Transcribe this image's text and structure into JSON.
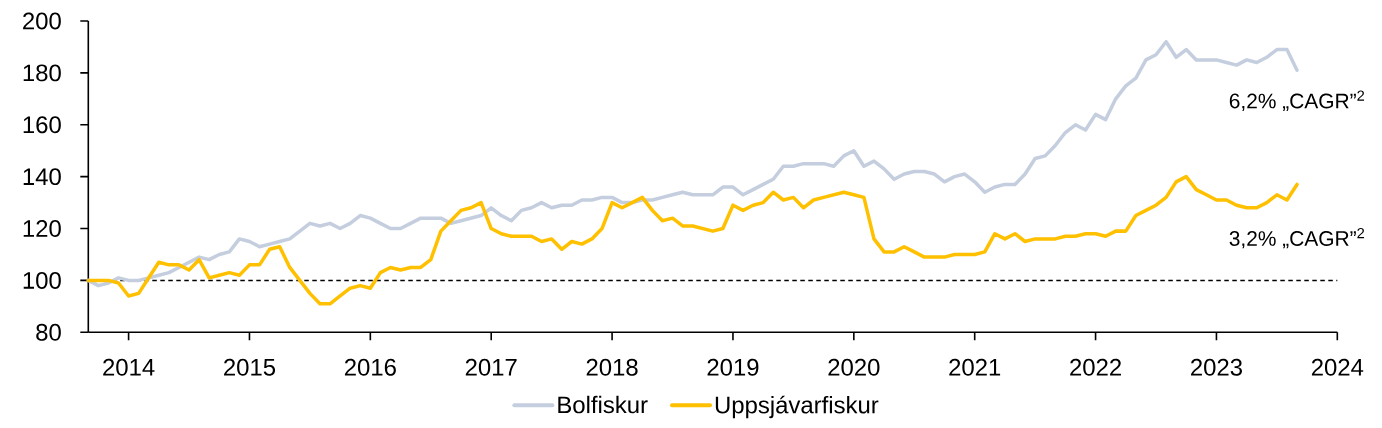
{
  "chart_data": {
    "type": "line",
    "x": [
      "2013-09",
      "2013-10",
      "2013-11",
      "2013-12",
      "2014-01",
      "2014-02",
      "2014-03",
      "2014-04",
      "2014-05",
      "2014-06",
      "2014-07",
      "2014-08",
      "2014-09",
      "2014-10",
      "2014-11",
      "2014-12",
      "2015-01",
      "2015-02",
      "2015-03",
      "2015-04",
      "2015-05",
      "2015-06",
      "2015-07",
      "2015-08",
      "2015-09",
      "2015-10",
      "2015-11",
      "2015-12",
      "2016-01",
      "2016-02",
      "2016-03",
      "2016-04",
      "2016-05",
      "2016-06",
      "2016-07",
      "2016-08",
      "2016-09",
      "2016-10",
      "2016-11",
      "2016-12",
      "2017-01",
      "2017-02",
      "2017-03",
      "2017-04",
      "2017-05",
      "2017-06",
      "2017-07",
      "2017-08",
      "2017-09",
      "2017-10",
      "2017-11",
      "2017-12",
      "2018-01",
      "2018-02",
      "2018-03",
      "2018-04",
      "2018-05",
      "2018-06",
      "2018-07",
      "2018-08",
      "2018-09",
      "2018-10",
      "2018-11",
      "2018-12",
      "2019-01",
      "2019-02",
      "2019-03",
      "2019-04",
      "2019-05",
      "2019-06",
      "2019-07",
      "2019-08",
      "2019-09",
      "2019-10",
      "2019-11",
      "2019-12",
      "2020-01",
      "2020-02",
      "2020-03",
      "2020-04",
      "2020-05",
      "2020-06",
      "2020-07",
      "2020-08",
      "2020-09",
      "2020-10",
      "2020-11",
      "2020-12",
      "2021-01",
      "2021-02",
      "2021-03",
      "2021-04",
      "2021-05",
      "2021-06",
      "2021-07",
      "2021-08",
      "2021-09",
      "2021-10",
      "2021-11",
      "2021-12",
      "2022-01",
      "2022-02",
      "2022-03",
      "2022-04",
      "2022-05",
      "2022-06",
      "2022-07",
      "2022-08",
      "2022-09",
      "2022-10",
      "2022-11",
      "2022-12",
      "2023-01",
      "2023-02",
      "2023-03",
      "2023-04",
      "2023-05",
      "2023-06",
      "2023-07",
      "2023-08",
      "2023-09"
    ],
    "series": [
      {
        "name": "Bolfiskur",
        "color": "#c4cede",
        "values": [
          100,
          98,
          99,
          101,
          100,
          100,
          101,
          102,
          103,
          105,
          107,
          109,
          108,
          110,
          111,
          116,
          115,
          113,
          114,
          115,
          116,
          119,
          122,
          121,
          122,
          120,
          122,
          125,
          124,
          122,
          120,
          120,
          122,
          124,
          124,
          124,
          122,
          123,
          124,
          125,
          128,
          125,
          123,
          127,
          128,
          130,
          128,
          129,
          129,
          131,
          131,
          132,
          132,
          130,
          130,
          131,
          131,
          132,
          133,
          134,
          133,
          133,
          133,
          136,
          136,
          133,
          135,
          137,
          139,
          144,
          144,
          145,
          145,
          145,
          144,
          148,
          150,
          144,
          146,
          143,
          139,
          141,
          142,
          142,
          141,
          138,
          140,
          141,
          138,
          134,
          136,
          137,
          137,
          141,
          147,
          148,
          152,
          157,
          160,
          158,
          164,
          162,
          170,
          175,
          178,
          185,
          187,
          192,
          186,
          189,
          185,
          185,
          185,
          184,
          183,
          185,
          184,
          186,
          189,
          189,
          181
        ]
      },
      {
        "name": "Uppsjávarfiskur",
        "color": "#ffc000",
        "values": [
          100,
          100,
          100,
          99,
          94,
          95,
          101,
          107,
          106,
          106,
          104,
          108,
          101,
          102,
          103,
          102,
          106,
          106,
          112,
          113,
          105,
          100,
          95,
          91,
          91,
          94,
          97,
          98,
          97,
          103,
          105,
          104,
          105,
          105,
          108,
          119,
          123,
          127,
          128,
          130,
          120,
          118,
          117,
          117,
          117,
          115,
          116,
          112,
          115,
          114,
          116,
          120,
          130,
          128,
          130,
          132,
          127,
          123,
          124,
          121,
          121,
          120,
          119,
          120,
          129,
          127,
          129,
          130,
          134,
          131,
          132,
          128,
          131,
          132,
          133,
          134,
          133,
          132,
          116,
          111,
          111,
          113,
          111,
          109,
          109,
          109,
          110,
          110,
          110,
          111,
          118,
          116,
          118,
          115,
          116,
          116,
          116,
          117,
          117,
          118,
          118,
          117,
          119,
          119,
          125,
          127,
          129,
          132,
          138,
          140,
          135,
          133,
          131,
          131,
          129,
          128,
          128,
          130,
          133,
          131,
          137
        ]
      }
    ],
    "xlim": [
      "2013-09",
      "2024-01"
    ],
    "xticks": [
      "2014",
      "2015",
      "2016",
      "2017",
      "2018",
      "2019",
      "2020",
      "2021",
      "2022",
      "2023",
      "2024"
    ],
    "ylim": [
      80,
      200
    ],
    "yticks": [
      80,
      100,
      120,
      140,
      160,
      180,
      200
    ],
    "ref_lines": [
      {
        "axis": "y",
        "value": 100,
        "color": "#000000",
        "line_style": "dashed"
      }
    ],
    "annotations": [
      "6,2% „CAGR”$^{2}$",
      "3,2% „CAGR”$^{2}$"
    ],
    "legend": "bottom",
    "marker": "none",
    "line_style": "solid"
  }
}
